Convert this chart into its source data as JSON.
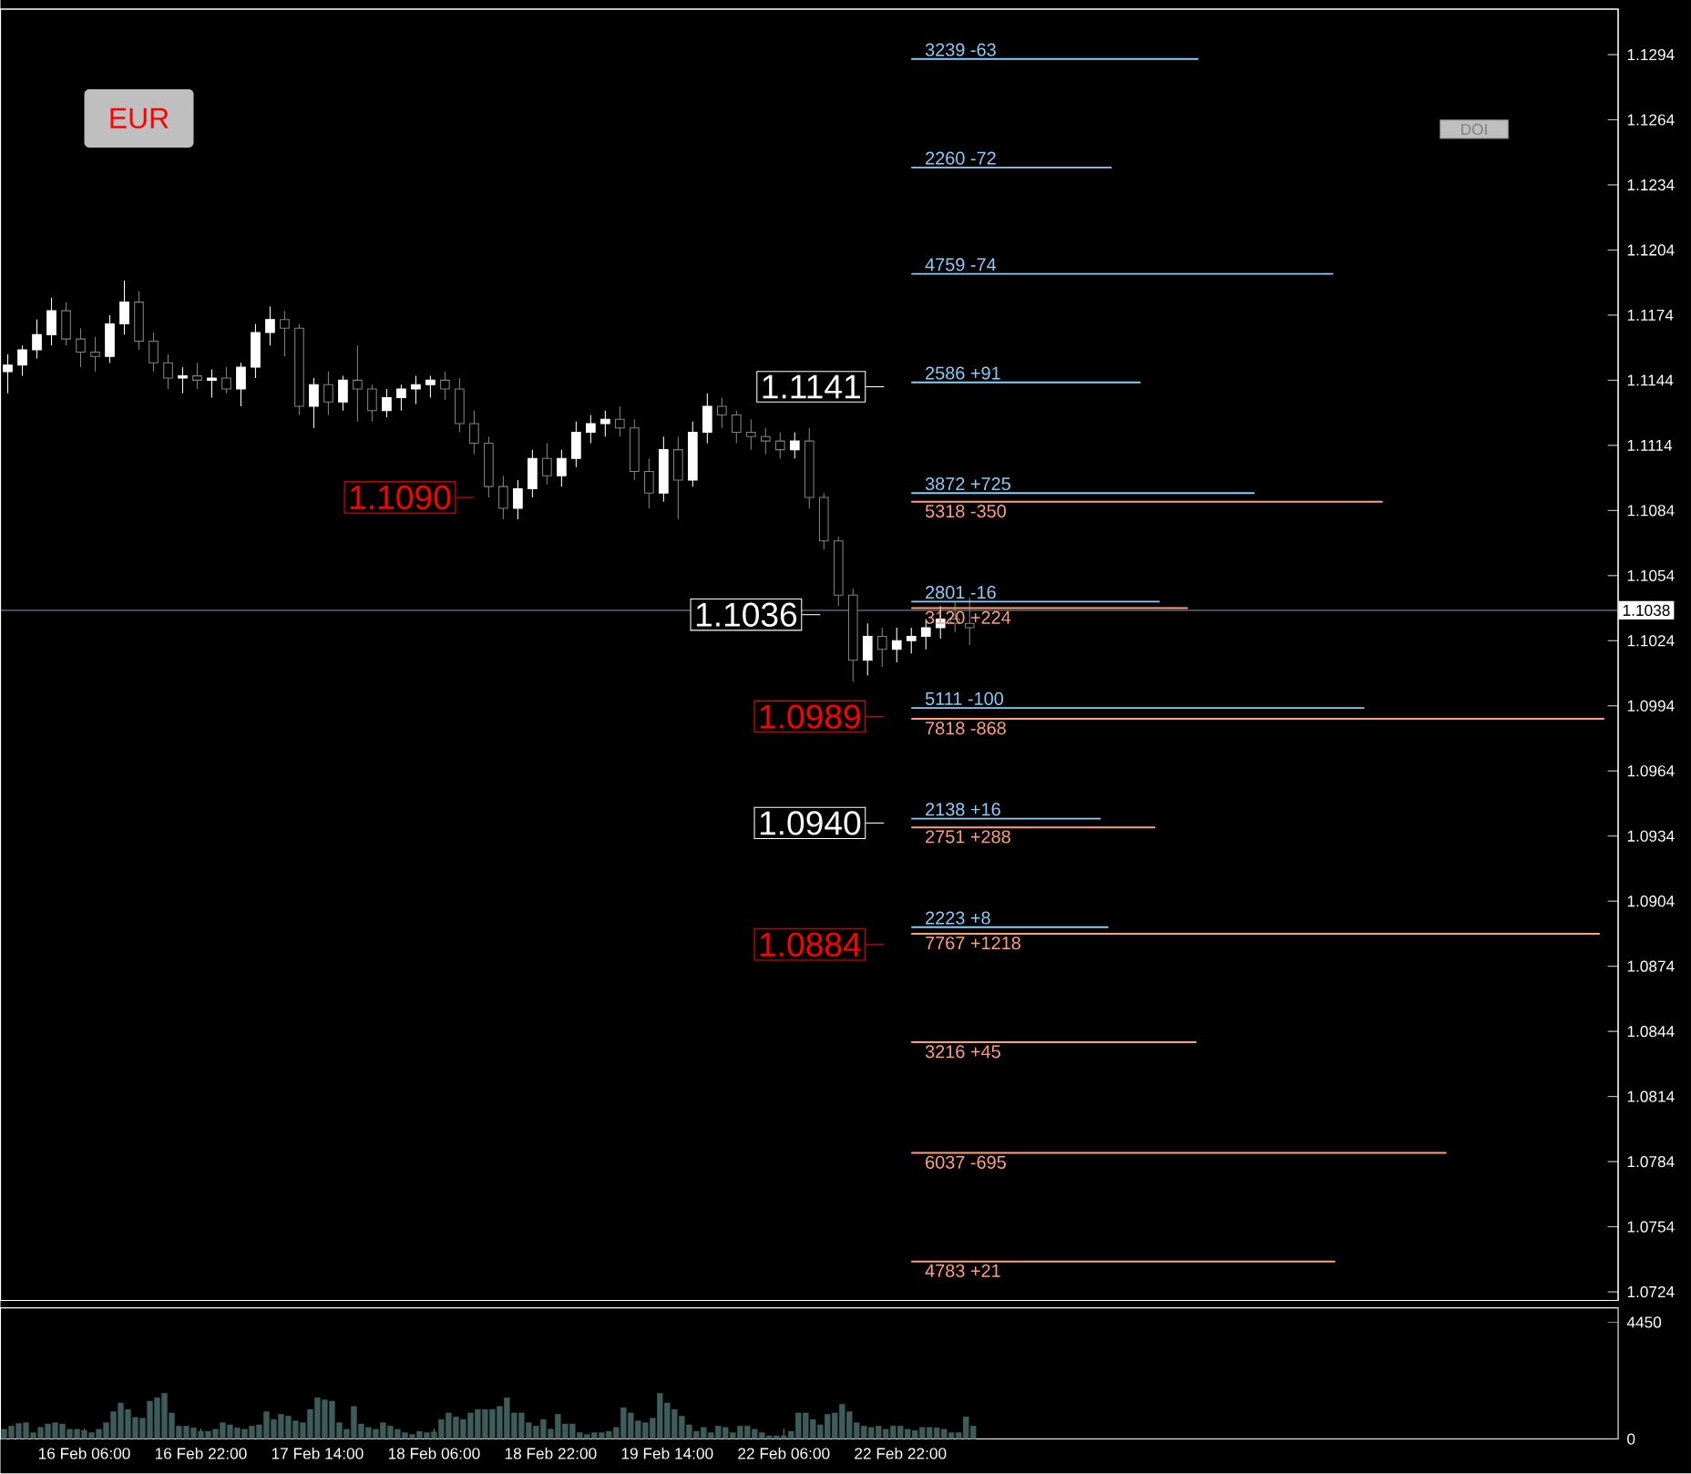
{
  "chart_data": [
    {
      "type": "candlestick",
      "ylim": [
        1.072,
        1.1315
      ],
      "tick_labels": "y",
      "yticks": [
        1.0724,
        1.0754,
        1.0784,
        1.0814,
        1.0844,
        1.0874,
        1.0904,
        1.0934,
        1.0964,
        1.0994,
        1.1024,
        1.1054,
        1.1084,
        1.1114,
        1.1144,
        1.1174,
        1.1204,
        1.1234,
        1.1264,
        1.1294
      ],
      "categories": [
        null,
        null,
        null,
        null,
        null,
        null,
        null,
        null,
        null,
        null,
        null,
        null,
        null,
        null,
        null,
        null,
        null,
        null,
        null,
        null,
        null,
        null,
        null,
        null,
        null,
        null,
        null,
        null,
        null,
        null,
        null,
        null,
        null,
        null,
        null,
        null,
        null,
        null,
        null,
        null,
        null,
        null,
        null,
        null,
        null,
        null,
        null,
        null,
        null,
        null,
        null,
        null,
        null,
        null,
        null,
        null,
        null,
        null,
        null,
        null,
        null,
        null,
        null,
        null,
        null,
        null,
        null,
        null,
        null,
        null,
        null,
        null,
        null,
        null,
        null,
        null,
        null,
        null,
        null,
        null,
        null,
        null,
        null,
        null,
        null,
        null,
        null,
        null,
        null,
        null,
        null,
        null,
        null,
        null,
        null,
        null,
        null,
        null,
        null,
        null,
        null,
        null,
        null,
        null,
        null,
        null,
        null,
        null,
        null,
        null,
        null
      ],
      "ohlc": [
        [
          1.1148,
          1.1156,
          1.1138,
          1.1151
        ],
        [
          1.1151,
          1.116,
          1.1146,
          1.1158
        ],
        [
          1.1158,
          1.1172,
          1.1154,
          1.1165
        ],
        [
          1.1165,
          1.1182,
          1.116,
          1.1176
        ],
        [
          1.1176,
          1.118,
          1.116,
          1.1163
        ],
        [
          1.1163,
          1.1168,
          1.115,
          1.1157
        ],
        [
          1.1157,
          1.1164,
          1.1148,
          1.1155
        ],
        [
          1.1155,
          1.1174,
          1.1152,
          1.117
        ],
        [
          1.117,
          1.119,
          1.1165,
          1.118
        ],
        [
          1.118,
          1.1185,
          1.1158,
          1.1162
        ],
        [
          1.1162,
          1.1166,
          1.1148,
          1.1152
        ],
        [
          1.1152,
          1.1156,
          1.114,
          1.1145
        ],
        [
          1.1145,
          1.115,
          1.1138,
          1.1146
        ],
        [
          1.1146,
          1.1152,
          1.114,
          1.1144
        ],
        [
          1.1144,
          1.1149,
          1.1136,
          1.1145
        ],
        [
          1.1145,
          1.115,
          1.1138,
          1.114
        ],
        [
          1.114,
          1.1152,
          1.1132,
          1.115
        ],
        [
          1.115,
          1.117,
          1.1145,
          1.1166
        ],
        [
          1.1166,
          1.1178,
          1.116,
          1.1172
        ],
        [
          1.1172,
          1.1176,
          1.1155,
          1.1168
        ],
        [
          1.1168,
          1.117,
          1.1128,
          1.1132
        ],
        [
          1.1132,
          1.1145,
          1.1122,
          1.1142
        ],
        [
          1.1142,
          1.1148,
          1.1128,
          1.1134
        ],
        [
          1.1134,
          1.1146,
          1.113,
          1.1144
        ],
        [
          1.1144,
          1.116,
          1.1125,
          1.114
        ],
        [
          1.114,
          1.1142,
          1.1125,
          1.113
        ],
        [
          1.113,
          1.114,
          1.1127,
          1.1136
        ],
        [
          1.1136,
          1.1142,
          1.113,
          1.114
        ],
        [
          1.114,
          1.1146,
          1.1133,
          1.1142
        ],
        [
          1.1142,
          1.1146,
          1.1136,
          1.1144
        ],
        [
          1.1144,
          1.1148,
          1.1135,
          1.114
        ],
        [
          1.114,
          1.1145,
          1.112,
          1.1124
        ],
        [
          1.1124,
          1.113,
          1.111,
          1.1115
        ],
        [
          1.1115,
          1.1118,
          1.109,
          1.1095
        ],
        [
          1.1095,
          1.11,
          1.108,
          1.1085
        ],
        [
          1.1085,
          1.1098,
          1.108,
          1.1094
        ],
        [
          1.1094,
          1.1112,
          1.109,
          1.1108
        ],
        [
          1.1108,
          1.1115,
          1.1096,
          1.11
        ],
        [
          1.11,
          1.1112,
          1.1095,
          1.1108
        ],
        [
          1.1108,
          1.1125,
          1.1104,
          1.112
        ],
        [
          1.112,
          1.1128,
          1.1115,
          1.1124
        ],
        [
          1.1124,
          1.113,
          1.1118,
          1.1126
        ],
        [
          1.1126,
          1.1132,
          1.1118,
          1.1122
        ],
        [
          1.1122,
          1.1126,
          1.1098,
          1.1102
        ],
        [
          1.1102,
          1.1108,
          1.1085,
          1.1092
        ],
        [
          1.1092,
          1.1118,
          1.1088,
          1.1112
        ],
        [
          1.1112,
          1.1118,
          1.108,
          1.1098
        ],
        [
          1.1098,
          1.1125,
          1.1095,
          1.112
        ],
        [
          1.112,
          1.1138,
          1.1115,
          1.1132
        ],
        [
          1.1132,
          1.1136,
          1.1122,
          1.1128
        ],
        [
          1.1128,
          1.113,
          1.1115,
          1.112
        ],
        [
          1.112,
          1.1126,
          1.1112,
          1.1118
        ],
        [
          1.1118,
          1.1122,
          1.111,
          1.1116
        ],
        [
          1.1116,
          1.112,
          1.1108,
          1.1112
        ],
        [
          1.1112,
          1.112,
          1.1108,
          1.1116
        ],
        [
          1.1116,
          1.1122,
          1.1085,
          1.109
        ],
        [
          1.109,
          1.1092,
          1.1066,
          1.107
        ],
        [
          1.107,
          1.1072,
          1.104,
          1.1045
        ],
        [
          1.1045,
          1.1048,
          1.1005,
          1.1015
        ],
        [
          1.1015,
          1.1032,
          1.1008,
          1.1026
        ],
        [
          1.1026,
          1.103,
          1.1012,
          1.102
        ],
        [
          1.102,
          1.103,
          1.1014,
          1.1024
        ],
        [
          1.1024,
          1.103,
          1.1018,
          1.1026
        ],
        [
          1.1026,
          1.1034,
          1.102,
          1.103
        ],
        [
          1.103,
          1.104,
          1.1025,
          1.1034
        ],
        [
          1.1034,
          1.1042,
          1.1028,
          1.1032
        ],
        [
          1.1032,
          1.1044,
          1.1022,
          1.103
        ],
        null,
        null,
        null,
        null,
        null,
        null,
        null,
        null,
        null,
        null,
        null,
        null,
        null,
        null,
        null,
        null,
        null,
        null,
        null,
        null,
        null,
        null,
        null,
        null,
        null,
        null,
        null,
        null,
        null,
        null,
        null,
        null,
        null,
        null,
        null,
        null,
        null,
        null,
        null,
        null,
        null,
        null,
        null,
        null
      ],
      "ref_lines": [
        {
          "axis": "y",
          "value": 1.1038,
          "label": "1.1038",
          "color": "#8899aa",
          "line_style": "solid"
        },
        {
          "axis": "y",
          "value": 1.1141,
          "label": "1.1141",
          "color": "#ffffff"
        },
        {
          "axis": "y",
          "value": 1.109,
          "label": "1.1090",
          "color": "#ff0000"
        },
        {
          "axis": "y",
          "value": 1.1036,
          "label": "1.1036",
          "color": "#ffffff"
        },
        {
          "axis": "y",
          "value": 1.0989,
          "label": "1.0989",
          "color": "#ff0000"
        },
        {
          "axis": "y",
          "value": 1.094,
          "label": "1.0940",
          "color": "#ffffff"
        },
        {
          "axis": "y",
          "value": 1.0884,
          "label": "1.0884",
          "color": "#ff0000"
        }
      ],
      "annotations": [
        "EUR",
        "DOI"
      ]
    },
    {
      "type": "bar",
      "orientation": "horizontal",
      "ylim": [
        1.072,
        1.1315
      ],
      "yticks": [
        1.0724,
        1.0754,
        1.0784,
        1.0814,
        1.0844,
        1.0874,
        1.0904,
        1.0934,
        1.0964,
        1.0994,
        1.1024,
        1.1054,
        1.1084,
        1.1114,
        1.1144,
        1.1174,
        1.1204,
        1.1234,
        1.1264,
        1.1294
      ],
      "tick_labels": false,
      "series": [
        {
          "color": "#87cefa",
          "x": [
            1.1292,
            1.1242,
            1.1193,
            1.1143,
            1.1092,
            1.1042,
            1.0993,
            1.0942,
            1.0892
          ],
          "values": [
            3239,
            2260,
            4759,
            2586,
            3872,
            2801,
            5111,
            2138,
            2223
          ],
          "value_labels": [
            "3239 -63",
            "2260 -72",
            "4759 -74",
            "2586 +91",
            "3872 +725",
            "2801 -16",
            "5111 -100",
            "2138 +16",
            "2223 +8"
          ]
        },
        {
          "color": "#ffa07a",
          "x": [
            1.1088,
            1.1039,
            1.0988,
            1.0938,
            1.0889,
            1.0839,
            1.0788,
            1.0738
          ],
          "values": [
            5318,
            3120,
            7818,
            2751,
            7767,
            3216,
            6037,
            4783
          ],
          "value_labels": [
            "5318 -350",
            "3120 +224",
            "7818 -868",
            "2751 +288",
            "7767 +1218",
            "3216 +45",
            "6037 -695",
            "4783 +21"
          ]
        }
      ]
    },
    {
      "type": "bar",
      "color": "#3d5c5c",
      "ylim": [
        0,
        5000
      ],
      "yticks": [
        0,
        4450
      ],
      "categories": [
        null,
        null,
        null,
        null,
        null,
        null,
        null,
        null,
        null,
        null,
        null,
        "16 Feb 06:00",
        null,
        null,
        null,
        null,
        null,
        null,
        null,
        null,
        null,
        null,
        null,
        null,
        null,
        null,
        null,
        "16 Feb 22:00",
        null,
        null,
        null,
        null,
        null,
        null,
        null,
        null,
        null,
        null,
        null,
        null,
        null,
        null,
        null,
        "17 Feb 14:00",
        null,
        null,
        null,
        null,
        null,
        null,
        null,
        null,
        null,
        null,
        null,
        null,
        null,
        null,
        null,
        "18 Feb 06:00",
        null,
        null,
        null,
        null,
        null,
        null,
        null,
        null,
        null,
        null,
        null,
        null,
        null,
        null,
        null,
        "18 Feb 22:00",
        null,
        null,
        null,
        null,
        null,
        null,
        null,
        null,
        null,
        null,
        null,
        null,
        null,
        null,
        null,
        "19 Feb 14:00",
        null,
        null,
        null,
        null,
        null,
        null,
        null,
        null,
        null,
        null,
        null,
        null,
        null,
        null,
        null,
        "22 Feb 06:00",
        null,
        null,
        null,
        null,
        null,
        null,
        null,
        null,
        null,
        null,
        null,
        null,
        null,
        null,
        null,
        "22 Feb 22:00",
        null,
        null,
        null,
        null,
        null,
        null,
        null,
        null,
        null,
        null,
        null,
        null,
        null,
        null,
        null,
        null,
        null,
        null,
        null,
        null,
        null,
        null,
        null,
        null,
        null,
        null,
        null,
        null,
        null,
        null,
        null,
        null,
        null,
        null,
        null,
        null,
        null,
        null,
        null,
        null,
        null,
        null,
        null,
        null,
        null,
        null,
        null,
        null,
        null,
        null,
        null,
        null,
        null,
        null,
        null,
        null,
        null,
        null,
        null,
        null,
        null,
        null,
        null,
        null,
        null,
        null,
        null,
        null,
        null,
        null,
        null,
        null,
        null,
        null,
        null,
        null,
        null,
        null,
        null,
        null,
        null,
        null,
        null,
        null,
        null,
        null,
        null,
        null,
        null,
        null,
        null,
        null,
        null,
        null,
        null,
        null,
        null,
        null
      ],
      "values": [
        380,
        500,
        600,
        630,
        250,
        450,
        580,
        630,
        580,
        380,
        380,
        330,
        250,
        380,
        630,
        1050,
        1380,
        1130,
        830,
        800,
        1450,
        1580,
        1750,
        1000,
        500,
        500,
        430,
        300,
        300,
        380,
        630,
        550,
        430,
        380,
        500,
        550,
        1050,
        750,
        950,
        880,
        700,
        630,
        1130,
        1580,
        1500,
        1450,
        630,
        380,
        1250,
        580,
        450,
        380,
        630,
        500,
        380,
        250,
        180,
        300,
        250,
        280,
        750,
        1000,
        850,
        750,
        1000,
        1130,
        1130,
        1130,
        1250,
        1580,
        1000,
        1000,
        630,
        500,
        750,
        380,
        950,
        580,
        580,
        250,
        180,
        250,
        250,
        300,
        450,
        1200,
        1000,
        700,
        630,
        800,
        1750,
        1380,
        1130,
        880,
        550,
        300,
        450,
        250,
        500,
        450,
        250,
        500,
        500,
        380,
        250,
        130,
        130,
        130,
        300,
        1000,
        1000,
        750,
        550,
        950,
        1000,
        1330,
        1050,
        630,
        500,
        450,
        500,
        380,
        500,
        500,
        380,
        330,
        450,
        450,
        430,
        380,
        250,
        250,
        850,
        500,
        null,
        null,
        null,
        null,
        null,
        null,
        null,
        null,
        null,
        null,
        null,
        null,
        null,
        null,
        null,
        null,
        null,
        null,
        null,
        null,
        null,
        null,
        null,
        null,
        null,
        null,
        null,
        null,
        null,
        null,
        null,
        null,
        null,
        null,
        null,
        null,
        null,
        null,
        null,
        null,
        null,
        null,
        null,
        null,
        null,
        null,
        null,
        null,
        null,
        null,
        null,
        null,
        null,
        null,
        null,
        null,
        null,
        null,
        null,
        null,
        null,
        null,
        null,
        null,
        null,
        null,
        null,
        null,
        null,
        null,
        null,
        null,
        null,
        null,
        null,
        null,
        null,
        null,
        null,
        null,
        null,
        null,
        null,
        null,
        null,
        null,
        null,
        null
      ]
    }
  ]
}
